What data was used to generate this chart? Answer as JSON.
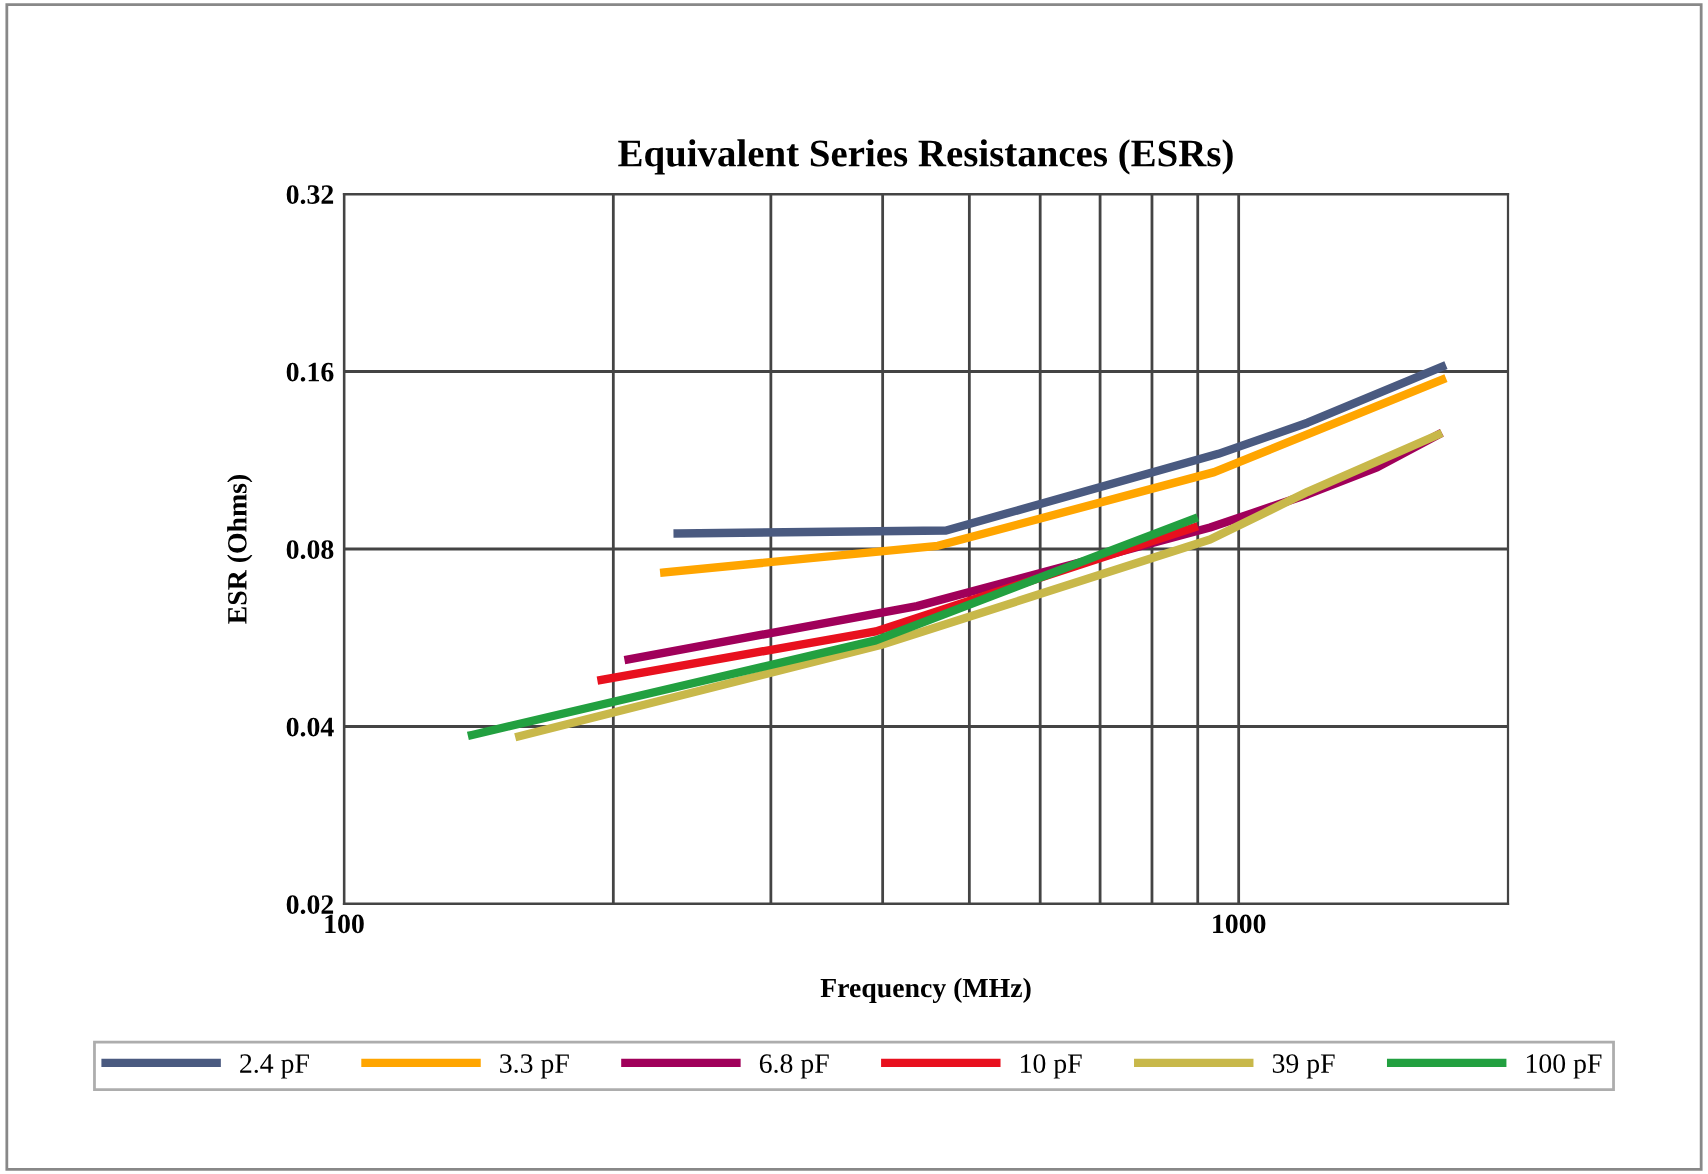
{
  "chart_data": {
    "type": "line",
    "title": "Equivalent Series Resistances (ESRs)",
    "xlabel": "Frequency (MHz)",
    "ylabel": "ESR (Ohms)",
    "log": "xy",
    "grid": true,
    "legend": "bottom",
    "marker": "none",
    "line_style": "solid",
    "xlim": [
      100,
      2000
    ],
    "ylim": [
      0.02,
      0.32
    ],
    "xticks": [
      100,
      {
        "value": 200,
        "label": null
      },
      {
        "value": 300,
        "label": null
      },
      {
        "value": 400,
        "label": null
      },
      {
        "value": 500,
        "label": null
      },
      {
        "value": 600,
        "label": null
      },
      {
        "value": 700,
        "label": null
      },
      {
        "value": 800,
        "label": null
      },
      {
        "value": 900,
        "label": null
      },
      1000
    ],
    "yticks": [
      0.02,
      0.04,
      0.08,
      0.16,
      0.32
    ],
    "series": [
      {
        "name": "2.4 pF",
        "color": "#4a5a80",
        "x": [
          236,
          471,
          949,
          1194,
          1688
        ],
        "values": [
          0.085,
          0.086,
          0.116,
          0.131,
          0.163
        ]
      },
      {
        "name": "3.3 pF",
        "color": "#ffa500",
        "x": [
          228,
          461,
          939,
          1688
        ],
        "values": [
          0.073,
          0.081,
          0.108,
          0.155
        ]
      },
      {
        "name": "6.8 pF",
        "color": "#a0005a",
        "x": [
          208,
          437,
          929,
          1194,
          1428,
          1671
        ],
        "values": [
          0.052,
          0.064,
          0.087,
          0.099,
          0.11,
          0.125
        ]
      },
      {
        "name": "10 pF",
        "color": "#e8101e",
        "x": [
          194,
          393,
          891
        ],
        "values": [
          0.048,
          0.058,
          0.087
        ]
      },
      {
        "name": "39 pF",
        "color": "#c8b84a",
        "x": [
          157,
          398,
          929,
          1194,
          1671
        ],
        "values": [
          0.0385,
          0.055,
          0.083,
          0.1,
          0.125
        ]
      },
      {
        "name": "100 pF",
        "color": "#22a040",
        "x": [
          139,
          393,
          891
        ],
        "values": [
          0.0387,
          0.056,
          0.09
        ]
      }
    ]
  }
}
